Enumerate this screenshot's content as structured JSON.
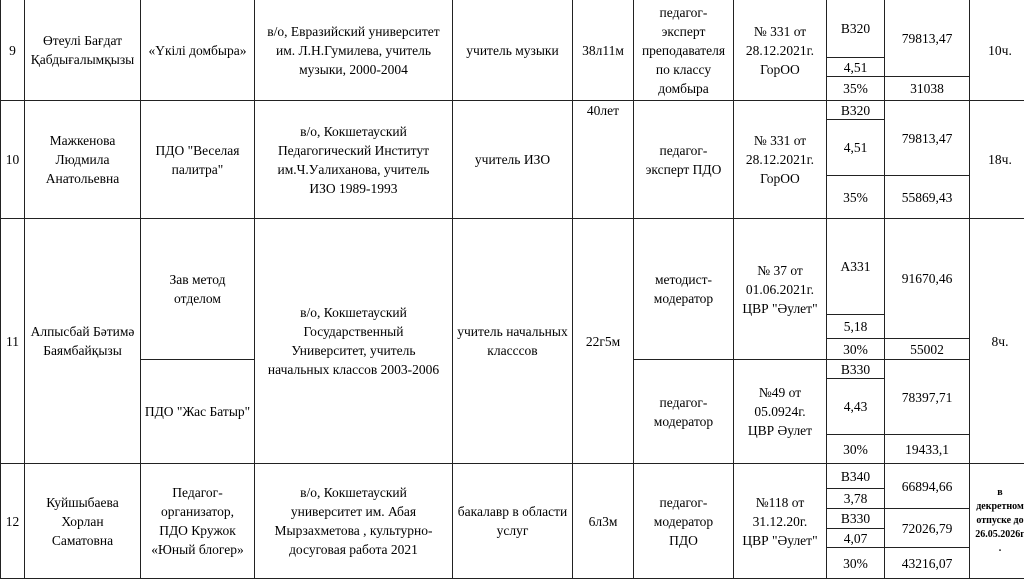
{
  "rows": [
    {
      "num": "9",
      "name": "Өтеулі Бағдат\nҚабдығалымқызы",
      "positions": [
        "«Үкілі домбыра»"
      ],
      "education": "в/о, Евразийский университет\nим. Л.Н.Гумилева, учитель\nмузыки, 2000-2004",
      "specialty": "учитель музыки",
      "experience": "38л11м",
      "categories": [
        {
          "category": "педагог-\nэксперт\nпреподавателя\nпо классу\nдомбыра",
          "order": "№ 331 от\n28.12.2021г.\nГорОО",
          "grade": "В320",
          "coef": "4,51",
          "salary": "79813,47",
          "percent": "35%",
          "bonus": "31038"
        }
      ],
      "hours": "10ч."
    },
    {
      "num": "10",
      "name": "Мажкенова\nЛюдмила\nАнатольевна",
      "positions": [
        "ПДО \"Веселая\nпалитра\""
      ],
      "education": "в/о, Кокшетауский\nПедагогический Институт\nим.Ч.Уалиханова, учитель\nИЗО 1989-1993",
      "specialty": "учитель ИЗО",
      "experience": "40лет",
      "categories": [
        {
          "category": "педагог-\nэксперт ПДО",
          "order": "№ 331 от\n28.12.2021г.\nГорОО",
          "grade": "В320",
          "coef": "4,51",
          "salary": "79813,47",
          "percent": "35%",
          "bonus": "55869,43"
        }
      ],
      "hours": "18ч."
    },
    {
      "num": "11",
      "name": "Алпысбай Бәтимә\nБаямбайқызы",
      "positions": [
        "Зав метод\nотделом",
        "ПДО \"Жас Батыр\""
      ],
      "education": "в/о, Кокшетауский\nГосударственный\nУниверситет, учитель\nначальных классов 2003-2006",
      "specialty": "учитель начальных\nкласссов",
      "experience": "22г5м",
      "categories": [
        {
          "category": "методист-\nмодератор",
          "order": "№ 37 от\n01.06.2021г.\nЦВР \"Әулет\"",
          "grade": "А331",
          "coef": "5,18",
          "salary": "91670,46",
          "percent": "30%",
          "bonus": "55002"
        },
        {
          "category": "педагог-\nмодератор",
          "order": "№49 от\n05.0924г.\nЦВР Әулет",
          "grade": "В330",
          "coef": "4,43",
          "salary": "78397,71",
          "percent": "30%",
          "bonus": "19433,1"
        }
      ],
      "hours": "8ч."
    },
    {
      "num": "12",
      "name": "Куйшыбаева\nХорлан\nСаматовна",
      "positions": [
        "Педагог-\nорганизатор,\nПДО Кружок\n«Юный блогер»"
      ],
      "education": "в/о, Кокшетауский\nуниверситет им. Абая\nМырзахметова , культурно-\nдосуговая работа 2021",
      "specialty": "бакалавр в области\nуслуг",
      "experience": "6л3м",
      "categories": [
        {
          "category": "педагог-\nмодератор\nПДО",
          "order": "№118 от\n31.12.20г.\nЦВР \"Әулет\"",
          "grade": "В340",
          "coef": "3,78",
          "salary": "66894,66",
          "grade2": "В330",
          "coef2": "4,07",
          "salary2": "72026,79",
          "percent": "30%",
          "bonus": "43216,07"
        }
      ],
      "hours": "в\nдекретном\nотпуске до\n26.05.2026г\n."
    }
  ]
}
